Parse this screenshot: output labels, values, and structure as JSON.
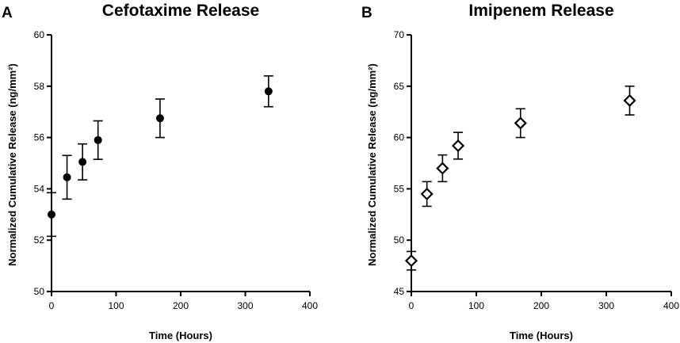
{
  "chart_data": [
    {
      "type": "scatter",
      "panel_label": "A",
      "title": "Cefotaxime Release",
      "xlabel": "Time (Hours)",
      "ylabel": "Normalized Cumulative Release (ng/mm²)",
      "xlim": [
        0,
        400
      ],
      "ylim": [
        50,
        60
      ],
      "xticks": [
        0,
        100,
        200,
        300,
        400
      ],
      "yticks": [
        50,
        52,
        54,
        56,
        58,
        60
      ],
      "grid": false,
      "marker": "filled-circle",
      "color": "#000000",
      "points": [
        {
          "x": 0,
          "y": 53.0,
          "err": 0.85
        },
        {
          "x": 24,
          "y": 54.45,
          "err": 0.85
        },
        {
          "x": 48,
          "y": 55.05,
          "err": 0.7
        },
        {
          "x": 72,
          "y": 55.9,
          "err": 0.75
        },
        {
          "x": 168,
          "y": 56.75,
          "err": 0.75
        },
        {
          "x": 336,
          "y": 57.8,
          "err": 0.6
        }
      ]
    },
    {
      "type": "scatter",
      "panel_label": "B",
      "title": "Imipenem Release",
      "xlabel": "Time (Hours)",
      "ylabel": "Normalized Cumulative Release (ng/mm²)",
      "xlim": [
        0,
        400
      ],
      "ylim": [
        45,
        70
      ],
      "xticks": [
        0,
        100,
        200,
        300,
        400
      ],
      "yticks": [
        45,
        50,
        55,
        60,
        65,
        70
      ],
      "grid": false,
      "marker": "open-diamond",
      "color": "#000000",
      "points": [
        {
          "x": 0,
          "y": 48.0,
          "err": 0.9
        },
        {
          "x": 24,
          "y": 54.5,
          "err": 1.2
        },
        {
          "x": 48,
          "y": 57.0,
          "err": 1.3
        },
        {
          "x": 72,
          "y": 59.2,
          "err": 1.3
        },
        {
          "x": 168,
          "y": 61.4,
          "err": 1.4
        },
        {
          "x": 336,
          "y": 63.6,
          "err": 1.4
        }
      ]
    }
  ]
}
